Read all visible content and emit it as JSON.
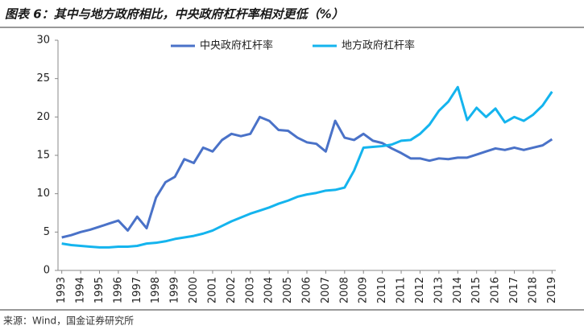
{
  "chart_data": {
    "type": "line",
    "title": "图表 6：其中与地方政府相比，中央政府杠杆率相对更低（%）",
    "source": "来源：Wind，国金证券研究所",
    "x": [
      1993,
      1993.5,
      1994,
      1994.5,
      1995,
      1995.5,
      1996,
      1996.5,
      1997,
      1997.5,
      1998,
      1998.5,
      1999,
      1999.5,
      2000,
      2000.5,
      2001,
      2001.5,
      2002,
      2002.5,
      2003,
      2003.5,
      2004,
      2004.5,
      2005,
      2005.5,
      2006,
      2006.5,
      2007,
      2007.5,
      2008,
      2008.5,
      2009,
      2009.5,
      2010,
      2010.5,
      2011,
      2011.5,
      2012,
      2012.5,
      2013,
      2013.5,
      2014,
      2014.5,
      2015,
      2015.5,
      2016,
      2016.5,
      2017,
      2017.5,
      2018,
      2018.5,
      2019
    ],
    "series": [
      {
        "name": "中央政府杠杆率",
        "color": "#4a72c8",
        "values": [
          4.3,
          4.6,
          5.0,
          5.3,
          5.7,
          6.1,
          6.5,
          5.2,
          7.0,
          5.5,
          9.5,
          11.5,
          12.2,
          14.5,
          14.0,
          16.0,
          15.5,
          17.0,
          17.8,
          17.5,
          17.8,
          20.0,
          19.5,
          18.3,
          18.2,
          17.3,
          16.7,
          16.5,
          15.5,
          19.5,
          17.3,
          17.0,
          17.8,
          16.9,
          16.6,
          15.9,
          15.3,
          14.6,
          14.6,
          14.3,
          14.6,
          14.5,
          14.7,
          14.7,
          15.1,
          15.5,
          15.9,
          15.7,
          16.0,
          15.7,
          16.0,
          16.3,
          17.1
        ]
      },
      {
        "name": "地方政府杠杆率",
        "color": "#14b4ee",
        "values": [
          3.5,
          3.3,
          3.2,
          3.1,
          3.0,
          3.0,
          3.1,
          3.1,
          3.2,
          3.5,
          3.6,
          3.8,
          4.1,
          4.3,
          4.5,
          4.8,
          5.2,
          5.8,
          6.4,
          6.9,
          7.4,
          7.8,
          8.2,
          8.7,
          9.1,
          9.6,
          9.9,
          10.1,
          10.4,
          10.5,
          10.8,
          13.0,
          16.0,
          16.1,
          16.2,
          16.4,
          16.9,
          17.0,
          17.8,
          19.0,
          20.8,
          22.0,
          23.9,
          19.6,
          21.2,
          20.0,
          21.1,
          19.3,
          20.0,
          19.5,
          20.3,
          21.5,
          23.3
        ]
      }
    ],
    "xlim": [
      1992.8,
      2019.2
    ],
    "xticks": [
      1993,
      1994,
      1995,
      1996,
      1997,
      1998,
      1999,
      2000,
      2001,
      2002,
      2003,
      2004,
      2005,
      2006,
      2007,
      2008,
      2009,
      2010,
      2011,
      2012,
      2013,
      2014,
      2015,
      2016,
      2017,
      2018,
      2019
    ],
    "ylim": [
      0,
      30
    ],
    "yticks": [
      0,
      5,
      10,
      15,
      20,
      25,
      30
    ],
    "grid": false,
    "legend": "top"
  }
}
